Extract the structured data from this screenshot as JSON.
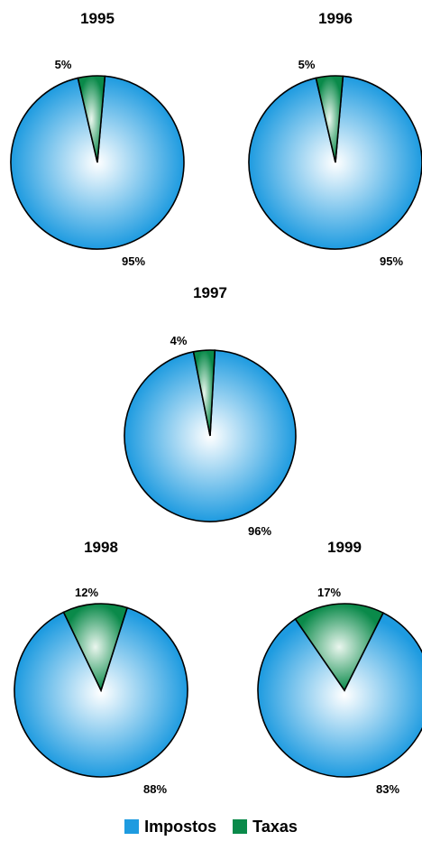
{
  "chart_data": [
    {
      "type": "pie",
      "title": "1995",
      "slices": [
        {
          "name": "Impostos",
          "value": 95,
          "label": "95%"
        },
        {
          "name": "Taxas",
          "value": 5,
          "label": "5%"
        }
      ]
    },
    {
      "type": "pie",
      "title": "1996",
      "slices": [
        {
          "name": "Impostos",
          "value": 95,
          "label": "95%"
        },
        {
          "name": "Taxas",
          "value": 5,
          "label": "5%"
        }
      ]
    },
    {
      "type": "pie",
      "title": "1997",
      "slices": [
        {
          "name": "Impostos",
          "value": 96,
          "label": "96%"
        },
        {
          "name": "Taxas",
          "value": 4,
          "label": "4%"
        }
      ]
    },
    {
      "type": "pie",
      "title": "1998",
      "slices": [
        {
          "name": "Impostos",
          "value": 88,
          "label": "88%"
        },
        {
          "name": "Taxas",
          "value": 12,
          "label": "12%"
        }
      ]
    },
    {
      "type": "pie",
      "title": "1999",
      "slices": [
        {
          "name": "Impostos",
          "value": 83,
          "label": "83%"
        },
        {
          "name": "Taxas",
          "value": 17,
          "label": "17%"
        }
      ]
    }
  ],
  "legend": {
    "items": [
      {
        "label": "Impostos",
        "color": "#1e9be0"
      },
      {
        "label": "Taxas",
        "color": "#0a8a4a"
      }
    ]
  },
  "colors": {
    "impostos_center": "#ffffff",
    "impostos_edge": "#1e9be0",
    "taxas_center": "#eaf6ee",
    "taxas_edge": "#0a8a4a"
  }
}
